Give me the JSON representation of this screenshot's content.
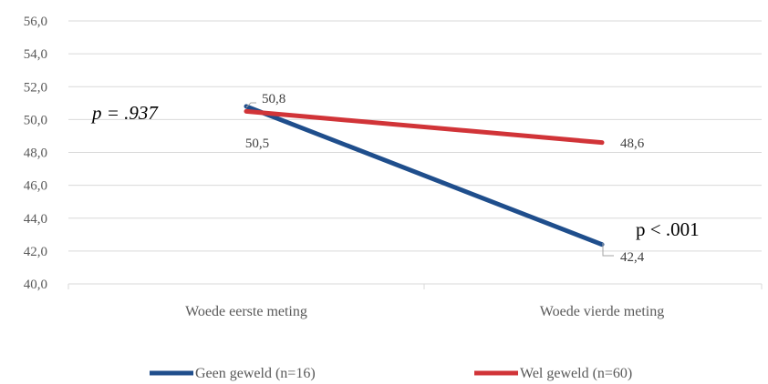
{
  "chart_data": {
    "type": "line",
    "categories": [
      "Woede eerste meting",
      "Woede vierde meting"
    ],
    "series": [
      {
        "name": "Geen geweld (n=16)",
        "values": [
          50.8,
          42.4
        ],
        "labels": [
          "50,8",
          "42,4"
        ],
        "color": "#1f4e8c"
      },
      {
        "name": "Wel geweld (n=60)",
        "values": [
          50.5,
          48.6
        ],
        "labels": [
          "50,5",
          "48,6"
        ],
        "color": "#d13438"
      }
    ],
    "yticks": [
      "40,0",
      "42,0",
      "44,0",
      "46,0",
      "48,0",
      "50,0",
      "52,0",
      "54,0",
      "56,0"
    ],
    "ylim": [
      40,
      56
    ],
    "grid": true,
    "legend": "bottom",
    "annotations": [
      {
        "text": "p = .937",
        "category": 0,
        "value": 50.2
      },
      {
        "text": "p < .001",
        "category": 1,
        "value": 43.2
      }
    ]
  }
}
